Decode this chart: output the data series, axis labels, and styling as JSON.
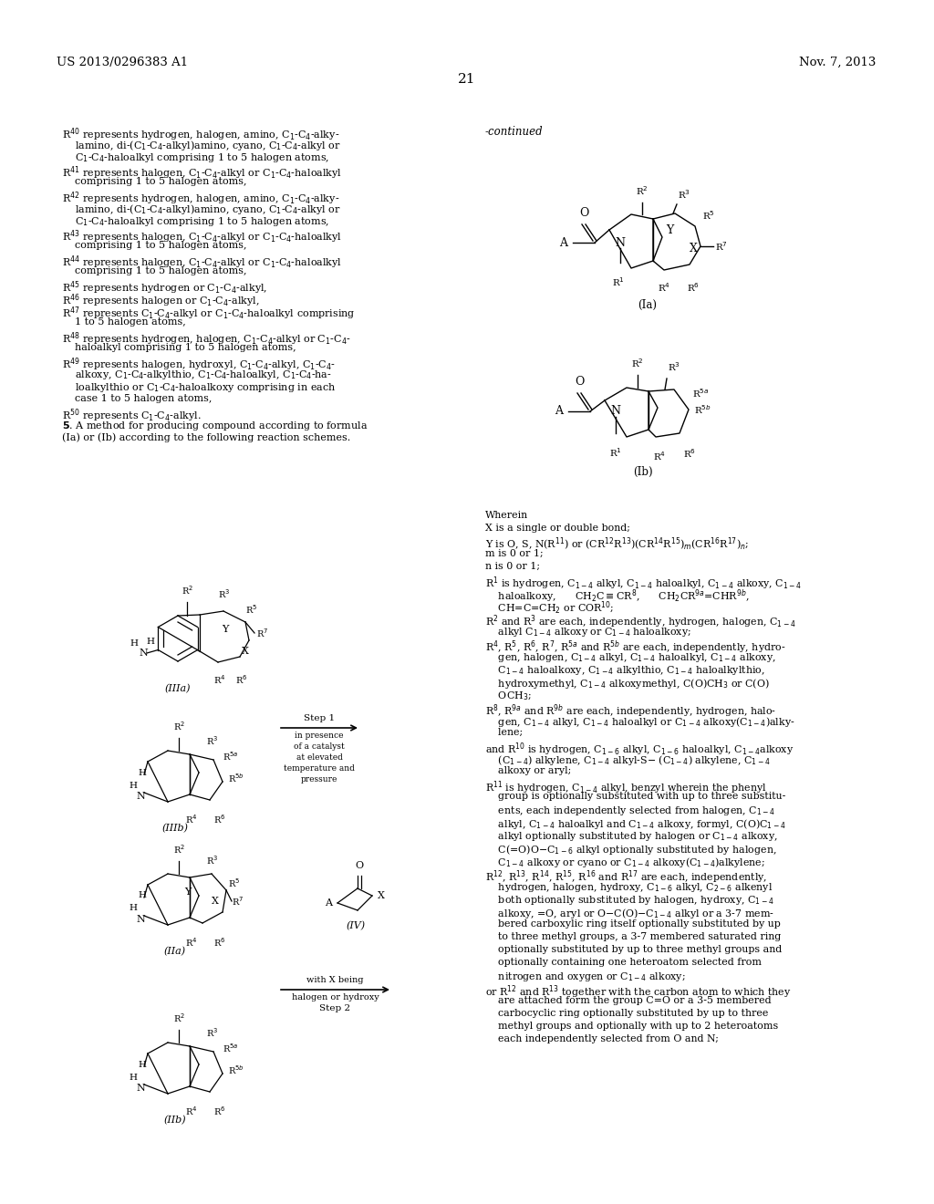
{
  "patent_number": "US 2013/0296383 A1",
  "patent_date": "Nov. 7, 2013",
  "page_number": "21",
  "bg_color": "#ffffff",
  "text_color": "#000000"
}
